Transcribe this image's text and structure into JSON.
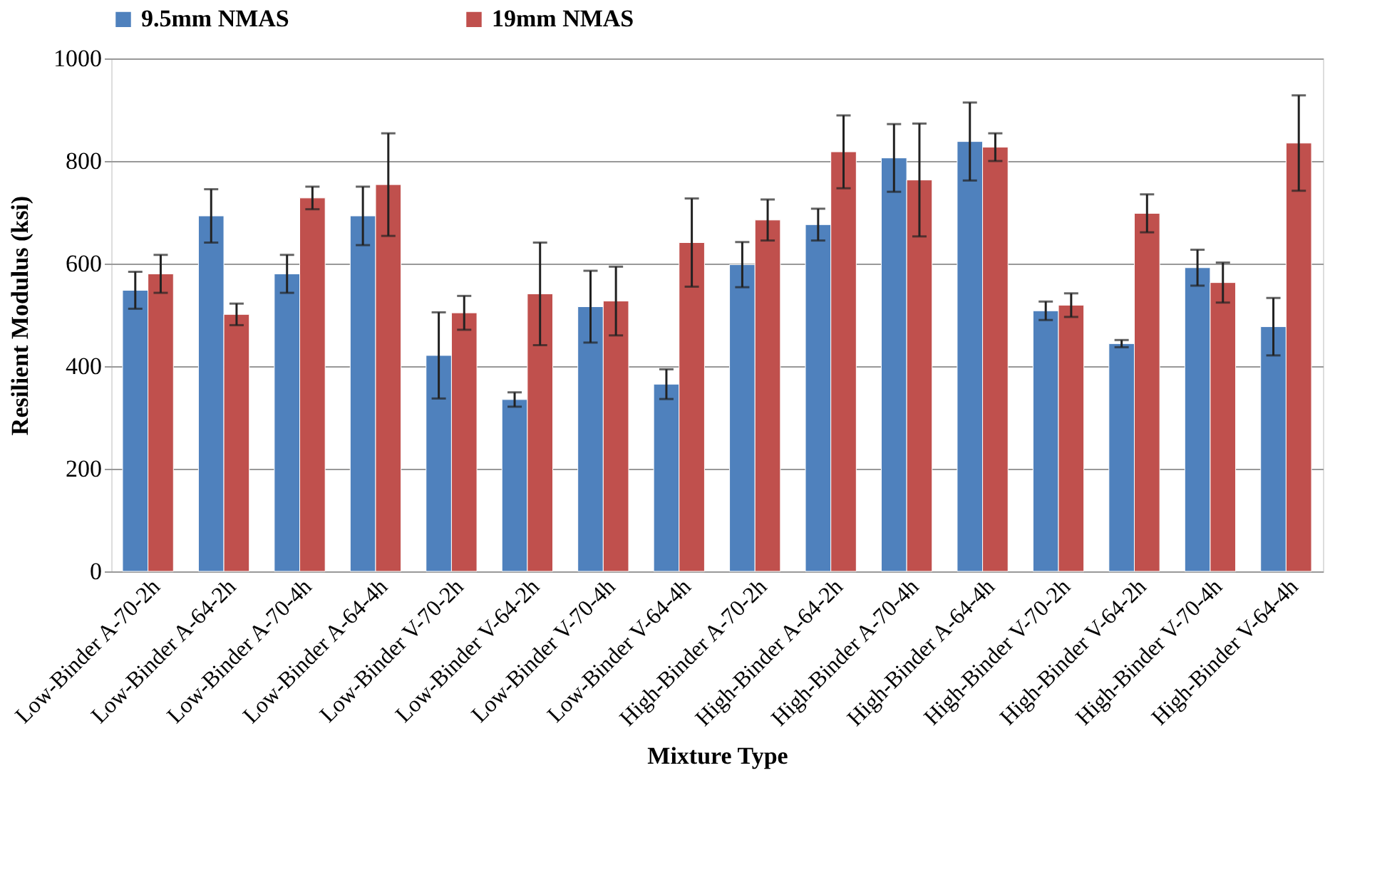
{
  "chart_data": {
    "type": "bar",
    "xlabel": "Mixture Type",
    "ylabel": "Resilient Modulus (ksi)",
    "categories": [
      "Low-Binder A-70-2h",
      "Low-Binder A-64-2h",
      "Low-Binder A-70-4h",
      "Low-Binder A-64-4h",
      "Low-Binder V-70-2h",
      "Low-Binder V-64-2h",
      "Low-Binder V-70-4h",
      "Low-Binder V-64-4h",
      "High-Binder A-70-2h",
      "High-Binder A-64-2h",
      "High-Binder A-70-4h",
      "High-Binder A-64-4h",
      "High-Binder V-70-2h",
      "High-Binder V-64-2h",
      "High-Binder V-70-4h",
      "High-Binder V-64-4h"
    ],
    "series": [
      {
        "name": "9.5mm NMAS",
        "color": "#4f81bd",
        "values": [
          548,
          693,
          580,
          693,
          421,
          335,
          516,
          365,
          598,
          676,
          806,
          838,
          508,
          444,
          592,
          477
        ],
        "errors": [
          36,
          52,
          37,
          57,
          84,
          14,
          70,
          29,
          44,
          31,
          66,
          76,
          18,
          7,
          35,
          56
        ]
      },
      {
        "name": "19mm NMAS",
        "color": "#c0504d",
        "values": [
          580,
          501,
          728,
          754,
          504,
          541,
          527,
          641,
          685,
          818,
          763,
          827,
          519,
          698,
          563,
          835
        ],
        "errors": [
          37,
          21,
          22,
          100,
          33,
          100,
          67,
          86,
          40,
          71,
          110,
          27,
          23,
          37,
          39,
          93
        ]
      }
    ],
    "ylim": [
      0,
      1000
    ],
    "yticks": [
      0,
      200,
      400,
      600,
      800,
      1000
    ],
    "grid": "y",
    "legend": "top"
  }
}
